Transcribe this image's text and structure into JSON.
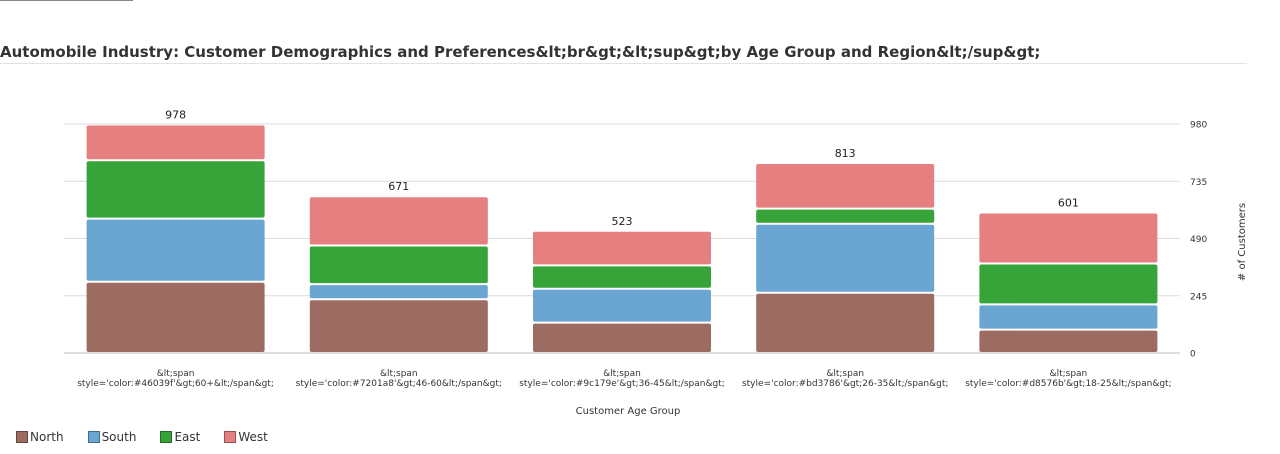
{
  "chart_data": {
    "type": "bar",
    "stacked": true,
    "title": "Automobile Industry: Customer Demographics and Preferences&lt;br&gt;&lt;sup&gt;by Age Group and Region&lt;/sup&gt;",
    "xlabel": "Customer Age Group",
    "ylabel": "# of Customers",
    "ylim": [
      0,
      980
    ],
    "yticks": [
      0,
      245,
      490,
      735,
      980
    ],
    "y_axis_side": "right",
    "grid": true,
    "legend_position": "bottom-left",
    "categories": [
      [
        "&lt;span",
        "style='color:#46039f'&gt;60+&lt;/span&gt;"
      ],
      [
        "&lt;span",
        "style='color:#7201a8'&gt;46-60&lt;/span&gt;"
      ],
      [
        "&lt;span",
        "style='color:#9c179e'&gt;36-45&lt;/span&gt;"
      ],
      [
        "&lt;span",
        "style='color:#bd3786'&gt;26-35&lt;/span&gt;"
      ],
      [
        "&lt;span",
        "style='color:#d8576b'&gt;18-25&lt;/span&gt;"
      ]
    ],
    "totals": [
      "978",
      "671",
      "523",
      "813",
      "601"
    ],
    "series": [
      {
        "name": "North",
        "color": "#9c6b61",
        "values": [
          305,
          230,
          130,
          258,
          100
        ]
      },
      {
        "name": "South",
        "color": "#6aa6d1",
        "values": [
          270,
          65,
          145,
          295,
          108
        ]
      },
      {
        "name": "East",
        "color": "#37a43a",
        "values": [
          250,
          165,
          100,
          65,
          175
        ]
      },
      {
        "name": "West",
        "color": "#e67f80",
        "values": [
          153,
          211,
          148,
          195,
          218
        ]
      }
    ]
  }
}
